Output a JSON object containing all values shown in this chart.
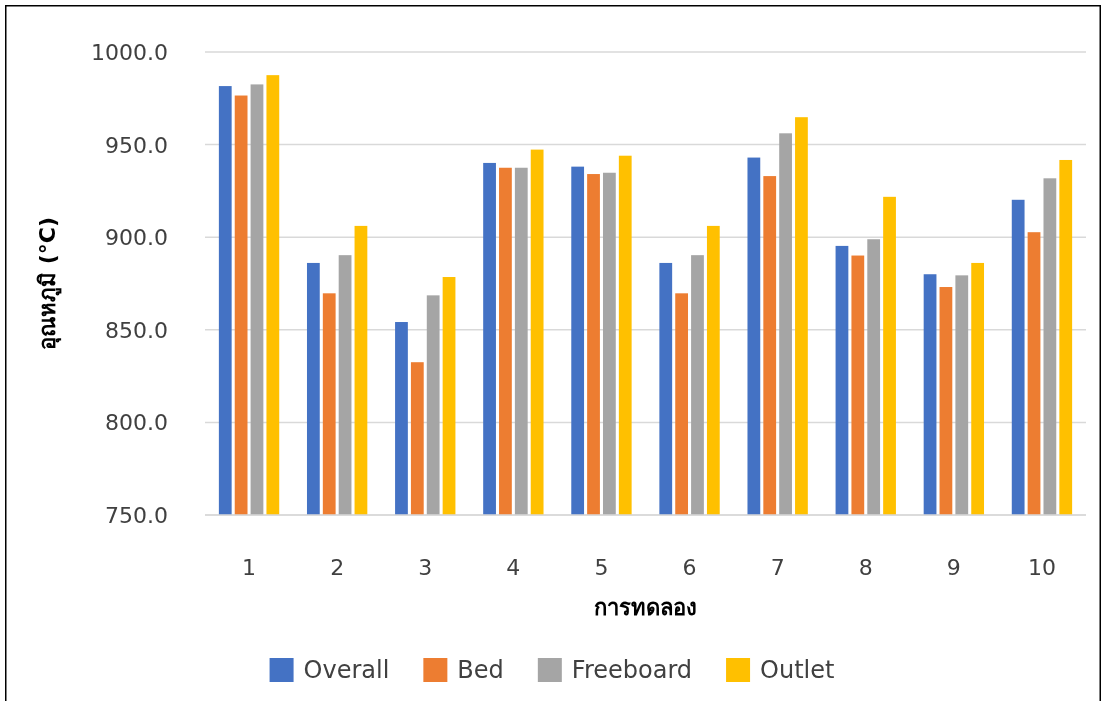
{
  "chart_data": {
    "type": "bar",
    "xlabel": "การทดลอง",
    "ylabel": "อุณหภูมิ (°C)",
    "categories": [
      "1",
      "2",
      "3",
      "4",
      "5",
      "6",
      "7",
      "8",
      "9",
      "10"
    ],
    "series": [
      {
        "name": "Overall",
        "color": "#4472c4",
        "values": [
          981.6,
          886.1,
          854.2,
          940.1,
          938.1,
          886.1,
          943.0,
          895.3,
          880.0,
          920.2
        ]
      },
      {
        "name": "Bed",
        "color": "#ed7d31",
        "values": [
          976.5,
          869.7,
          832.5,
          937.5,
          934.1,
          869.7,
          933.0,
          890.1,
          873.1,
          902.7
        ]
      },
      {
        "name": "Freeboard",
        "color": "#a5a5a5",
        "values": [
          982.5,
          890.3,
          868.6,
          937.5,
          934.8,
          890.3,
          956.1,
          898.9,
          879.4,
          931.8
        ]
      },
      {
        "name": "Outlet",
        "color": "#ffc000",
        "values": [
          987.5,
          906.1,
          878.5,
          947.3,
          944.0,
          906.1,
          964.8,
          921.8,
          886.1,
          941.7
        ]
      }
    ],
    "ylim": [
      750,
      1000
    ],
    "yticks": [
      {
        "value": 750,
        "label": "750.0"
      },
      {
        "value": 800,
        "label": "800.0"
      },
      {
        "value": 850,
        "label": "850.0"
      },
      {
        "value": 900,
        "label": "900.0"
      },
      {
        "value": 950,
        "label": "950.0"
      },
      {
        "value": 1000,
        "label": "1000.0"
      }
    ],
    "grid": "y",
    "legend": "bottom"
  }
}
